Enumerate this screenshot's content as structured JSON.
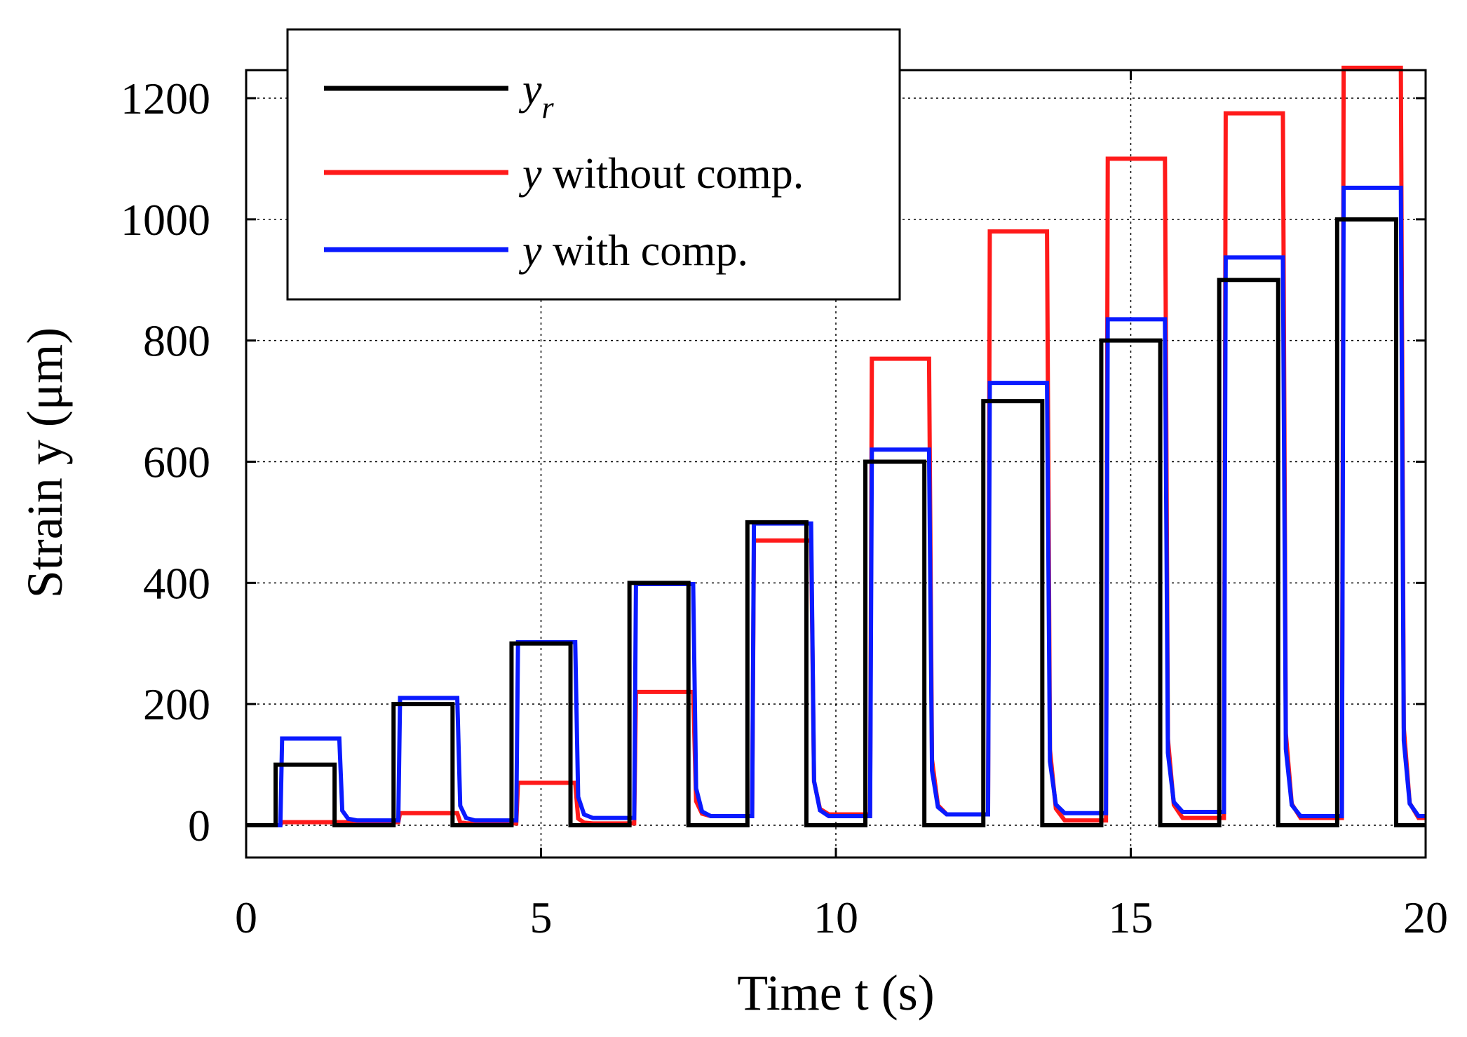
{
  "chart_data": {
    "type": "line",
    "xlabel": "Time t (s)",
    "ylabel": "Strain y (μm)",
    "xlim": [
      0,
      20
    ],
    "ylim": [
      -50,
      1250
    ],
    "xticks": [
      0,
      5,
      10,
      15,
      20
    ],
    "yticks": [
      0,
      200,
      400,
      600,
      800,
      1000,
      1200
    ],
    "grid": true,
    "legend_position": "top-left",
    "legend": [
      {
        "symbol": "y",
        "subscript": "r",
        "text": ""
      },
      {
        "symbol": "y",
        "subscript": "",
        "text": " without comp."
      },
      {
        "symbol": "y",
        "subscript": "",
        "text": " with comp."
      }
    ],
    "colors": {
      "reference": "#000000",
      "without": "#ff1a1a",
      "with": "#0a1aff"
    },
    "period": 2,
    "pulse_on_offset": 0.5,
    "pulse_off_offset": 1.5,
    "series": [
      {
        "name": "y_r",
        "color": "#000000",
        "levels": [
          100,
          200,
          300,
          400,
          500,
          600,
          700,
          800,
          900,
          1000
        ],
        "baselines": [
          0,
          0,
          0,
          0,
          0,
          0,
          0,
          0,
          0,
          0
        ]
      },
      {
        "name": "y without comp.",
        "color": "#ff1a1a",
        "levels": [
          5,
          20,
          70,
          220,
          470,
          770,
          980,
          1100,
          1175,
          1250
        ],
        "baselines": [
          0,
          5,
          3,
          3,
          15,
          18,
          18,
          8,
          12,
          12
        ]
      },
      {
        "name": "y with comp.",
        "color": "#0a1aff",
        "levels": [
          143,
          210,
          302,
          398,
          498,
          620,
          730,
          835,
          937,
          1052
        ],
        "baselines": [
          0,
          8,
          8,
          12,
          15,
          15,
          18,
          20,
          22,
          15
        ]
      }
    ]
  }
}
